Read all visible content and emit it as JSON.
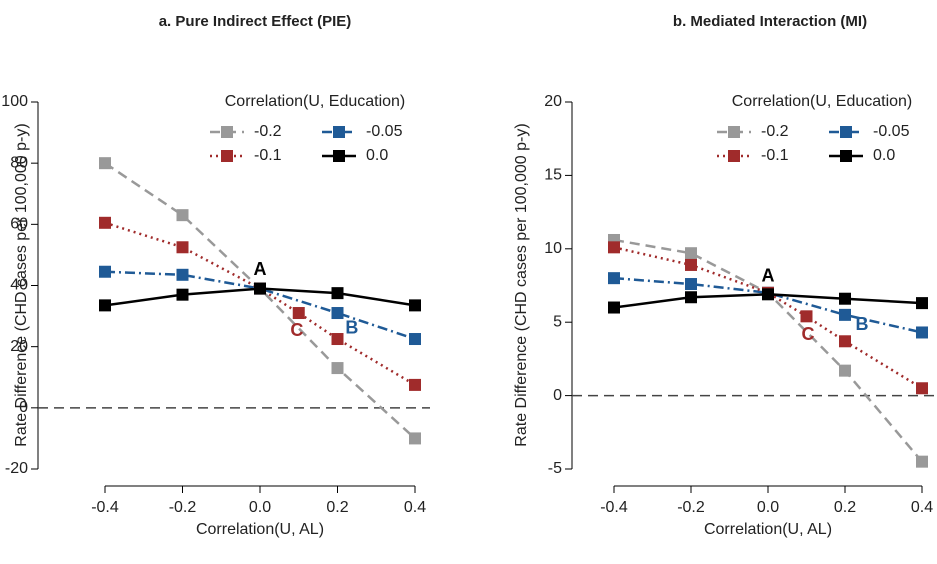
{
  "chart_data": [
    {
      "type": "line",
      "title": "a. Pure Indirect Effect (PIE)",
      "xlabel": "Correlation(U, AL)",
      "ylabel": "Rate Difference (CHD cases per 100,000 p-y)",
      "xlim": [
        -0.4,
        0.4
      ],
      "ylim": [
        -20,
        100
      ],
      "xticks": [
        -0.4,
        -0.2,
        {
          "value": 0,
          "label": "0.0"
        },
        0.2,
        0.4
      ],
      "yticks": [
        -20,
        0,
        20,
        40,
        60,
        80,
        100
      ],
      "hline": 0,
      "legend": "top-right",
      "legend_title": "Correlation(U, Education)",
      "series": [
        {
          "name": "-0.2",
          "color": "#999999",
          "linestyle": "dashed",
          "x": [
            -0.4,
            -0.2,
            0,
            0.2,
            0.4
          ],
          "values": [
            80,
            63,
            39,
            13,
            -10
          ]
        },
        {
          "name": "-0.05",
          "color": "#1f5a96",
          "linestyle": "dashdot",
          "x": [
            -0.4,
            -0.2,
            0,
            0.2,
            0.4
          ],
          "values": [
            44.5,
            43.5,
            39,
            31,
            22.5
          ]
        },
        {
          "name": "-0.1",
          "color": "#a02b2b",
          "linestyle": "dotted",
          "x": [
            -0.4,
            -0.2,
            0,
            0.1,
            0.2,
            0.4
          ],
          "values": [
            60.5,
            52.5,
            39,
            31,
            22.5,
            7.5
          ]
        },
        {
          "name": "0.0",
          "color": "#000000",
          "linestyle": "solid",
          "x": [
            -0.4,
            -0.2,
            0,
            0.2,
            0.4
          ],
          "values": [
            33.5,
            37,
            39,
            37.5,
            33.5
          ]
        }
      ],
      "annotations": [
        {
          "text": "A",
          "x": 0,
          "y": 45,
          "color": "#000000"
        },
        {
          "text": "B",
          "x": 0.237,
          "y": 25.8,
          "color": "#1f5a96"
        },
        {
          "text": "C",
          "x": 0.095,
          "y": 25,
          "color": "#a02b2b"
        }
      ]
    },
    {
      "type": "line",
      "title": "b. Mediated Interaction (MI)",
      "xlabel": "Correlation(U, AL)",
      "ylabel": "Rate Difference (CHD cases per 100,000 p-y)",
      "xlim": [
        -0.4,
        0.4
      ],
      "ylim": [
        -5,
        20
      ],
      "xticks": [
        -0.4,
        -0.2,
        {
          "value": 0,
          "label": "0.0"
        },
        0.2,
        0.4
      ],
      "yticks": [
        -5,
        0,
        5,
        10,
        15,
        20
      ],
      "hline": 0,
      "legend": "top-right",
      "legend_title": "Correlation(U, Education)",
      "series": [
        {
          "name": "-0.2",
          "color": "#999999",
          "linestyle": "dashed",
          "x": [
            -0.4,
            -0.2,
            0,
            0.2,
            0.4
          ],
          "values": [
            10.6,
            9.7,
            7,
            1.7,
            -4.5
          ]
        },
        {
          "name": "-0.05",
          "color": "#1f5a96",
          "linestyle": "dashdot",
          "x": [
            -0.4,
            -0.2,
            0,
            0.2,
            0.4
          ],
          "values": [
            8,
            7.6,
            7,
            5.5,
            4.3
          ]
        },
        {
          "name": "-0.1",
          "color": "#a02b2b",
          "linestyle": "dotted",
          "x": [
            -0.4,
            -0.2,
            0,
            0.1,
            0.2,
            0.4
          ],
          "values": [
            10.1,
            8.9,
            7,
            5.4,
            3.7,
            0.5
          ]
        },
        {
          "name": "0.0",
          "color": "#000000",
          "linestyle": "solid",
          "x": [
            -0.4,
            -0.2,
            0,
            0.2,
            0.4
          ],
          "values": [
            6,
            6.7,
            6.9,
            6.6,
            6.3
          ]
        }
      ],
      "annotations": [
        {
          "text": "A",
          "x": 0,
          "y": 8.1,
          "color": "#000000"
        },
        {
          "text": "B",
          "x": 0.244,
          "y": 4.8,
          "color": "#1f5a96"
        },
        {
          "text": "C",
          "x": 0.104,
          "y": 4.1,
          "color": "#a02b2b"
        }
      ]
    }
  ]
}
